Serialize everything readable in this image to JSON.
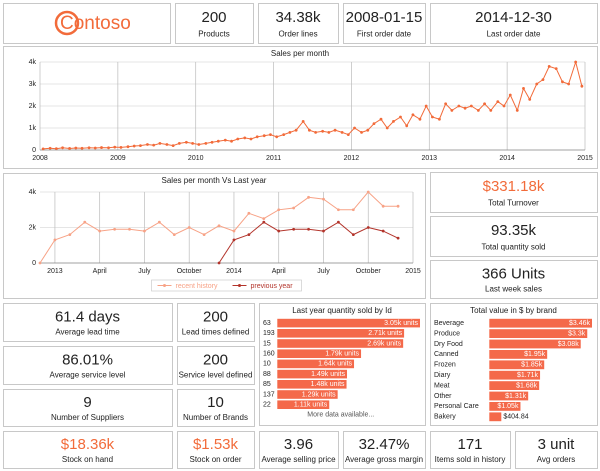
{
  "logo": "Contoso",
  "kpis": [
    {
      "value": "200",
      "label": "Products"
    },
    {
      "value": "34.38k",
      "label": "Order lines"
    },
    {
      "value": "2008-01-15",
      "label": "First order date"
    },
    {
      "value": "2014-12-30",
      "label": "Last order date"
    },
    {
      "value": "$331.18k",
      "label": "Total Turnover",
      "color": "#f26b3a"
    },
    {
      "value": "93.35k",
      "label": "Total quantity sold"
    },
    {
      "value": "366 Units",
      "label": "Last week sales"
    },
    {
      "value": "61.4 days",
      "label": "Average lead time"
    },
    {
      "value": "200",
      "label": "Lead times defined"
    },
    {
      "value": "86.01%",
      "label": "Average service level"
    },
    {
      "value": "200",
      "label": "Service level defined"
    },
    {
      "value": "9",
      "label": "Number of Suppliers"
    },
    {
      "value": "10",
      "label": "Number of Brands"
    },
    {
      "value": "$18.36k",
      "label": "Stock on hand",
      "color": "#f26b3a"
    },
    {
      "value": "$1.53k",
      "label": "Stock on order",
      "color": "#f26b3a"
    },
    {
      "value": "3.96",
      "label": "Average selling price"
    },
    {
      "value": "32.47%",
      "label": "Average gross margin"
    },
    {
      "value": "171",
      "label": "Items sold in history"
    },
    {
      "value": "3 unit",
      "label": "Avg orders"
    }
  ],
  "chart_data": [
    {
      "type": "line",
      "title": "Sales per month",
      "x": [
        2008.04,
        2008.13,
        2008.21,
        2008.29,
        2008.38,
        2008.46,
        2008.54,
        2008.63,
        2008.71,
        2008.79,
        2008.88,
        2008.96,
        2009.04,
        2009.13,
        2009.21,
        2009.29,
        2009.38,
        2009.46,
        2009.54,
        2009.63,
        2009.71,
        2009.79,
        2009.88,
        2009.96,
        2010.04,
        2010.13,
        2010.21,
        2010.29,
        2010.38,
        2010.46,
        2010.54,
        2010.63,
        2010.71,
        2010.79,
        2010.88,
        2010.96,
        2011.04,
        2011.13,
        2011.21,
        2011.29,
        2011.38,
        2011.46,
        2011.54,
        2011.63,
        2011.71,
        2011.79,
        2011.88,
        2011.96,
        2012.04,
        2012.13,
        2012.21,
        2012.29,
        2012.38,
        2012.46,
        2012.54,
        2012.63,
        2012.71,
        2012.79,
        2012.88,
        2012.96,
        2013.04,
        2013.13,
        2013.21,
        2013.29,
        2013.38,
        2013.46,
        2013.54,
        2013.63,
        2013.71,
        2013.79,
        2013.88,
        2013.96,
        2014.04,
        2014.13,
        2014.21,
        2014.29,
        2014.38,
        2014.46,
        2014.54,
        2014.63,
        2014.71,
        2014.79,
        2014.88,
        2014.96
      ],
      "series": [
        {
          "color": "#f26b3a",
          "values": [
            50,
            80,
            60,
            100,
            70,
            90,
            80,
            100,
            90,
            110,
            100,
            130,
            120,
            150,
            180,
            200,
            250,
            220,
            300,
            250,
            200,
            300,
            350,
            300,
            250,
            300,
            350,
            400,
            450,
            400,
            500,
            550,
            500,
            600,
            650,
            700,
            600,
            700,
            800,
            900,
            1300,
            900,
            800,
            850,
            800,
            900,
            800,
            700,
            1000,
            800,
            900,
            1200,
            1400,
            1000,
            1300,
            1500,
            1100,
            1600,
            1400,
            2000,
            1500,
            1400,
            2100,
            1800,
            2000,
            1900,
            2000,
            1800,
            2100,
            1800,
            2200,
            2000,
            2500,
            1800,
            2800,
            2300,
            3000,
            3200,
            3800,
            3700,
            3100,
            3000,
            4000,
            2900
          ]
        }
      ],
      "xlim": [
        2008,
        2015
      ],
      "xticks": [
        2008,
        2009,
        2010,
        2011,
        2012,
        2013,
        2014,
        2015
      ],
      "ylim": [
        0,
        4000
      ],
      "yticks": [
        0,
        {
          "value": 1000,
          "label": "1k"
        },
        {
          "value": 2000,
          "label": "2k"
        },
        {
          "value": 3000,
          "label": "3k"
        },
        {
          "value": 4000,
          "label": "4k"
        }
      ],
      "grid": true
    },
    {
      "type": "line",
      "title": "Sales per month Vs Last year",
      "categories": [
        null,
        "2013",
        null,
        null,
        "April",
        null,
        null,
        "July",
        null,
        null,
        "October",
        null,
        null,
        "2014",
        null,
        null,
        "April",
        null,
        null,
        "July",
        null,
        null,
        "October",
        null,
        null,
        "2015"
      ],
      "series": [
        {
          "name": "recent history",
          "color": "#f7a286",
          "values": [
            0,
            1300,
            1600,
            2300,
            1800,
            1900,
            1900,
            1800,
            2300,
            1600,
            2000,
            1600,
            2100,
            1800,
            2800,
            2500,
            3000,
            3100,
            3700,
            3600,
            3000,
            3000,
            4000,
            3200,
            3200,
            null
          ]
        },
        {
          "name": "previous year",
          "color": "#b3342b",
          "values": [
            null,
            null,
            null,
            null,
            null,
            null,
            null,
            null,
            null,
            null,
            null,
            null,
            0,
            1300,
            1600,
            2300,
            1800,
            1900,
            1900,
            1800,
            2300,
            1600,
            2000,
            1800,
            1400,
            null
          ]
        }
      ],
      "ylim": [
        0,
        4000
      ],
      "yticks": [
        0,
        {
          "value": 2000,
          "label": "2k"
        },
        {
          "value": 4000,
          "label": "4k"
        }
      ],
      "grid": true,
      "legend": "bottom"
    },
    {
      "type": "hbar",
      "title": "Last year quantity sold by Id",
      "categories": [
        "63",
        "193",
        "15",
        "160",
        "10",
        "88",
        "85",
        "137",
        "22"
      ],
      "values": [
        3050,
        2710,
        2690,
        1790,
        1640,
        1490,
        1480,
        1290,
        1110
      ],
      "value_labels": [
        "3.05k units",
        "2.71k units",
        "2.69k units",
        "1.79k units",
        "1.64k units",
        "1.49k units",
        "1.48k units",
        "1.29k units",
        "1.11k units"
      ],
      "color": "#f4694a",
      "footer": "More data available..."
    },
    {
      "type": "hbar",
      "title": "Total value in $ by brand",
      "categories": [
        "Beverage",
        "Produce",
        "Dry Food",
        "Canned",
        "Frozen",
        "Diary",
        "Meat",
        "Other",
        "Personal Care",
        "Bakery"
      ],
      "values": [
        3460,
        3300,
        3080,
        1950,
        1850,
        1710,
        1680,
        1310,
        1050,
        404.84
      ],
      "value_labels": [
        "$3.46k",
        "$3.3k",
        "$3.08k",
        "$1.95k",
        "$1.85k",
        "$1.71k",
        "$1.68k",
        "$1.31k",
        "$1.05k",
        "$404.84"
      ],
      "color": "#f4694a"
    }
  ]
}
